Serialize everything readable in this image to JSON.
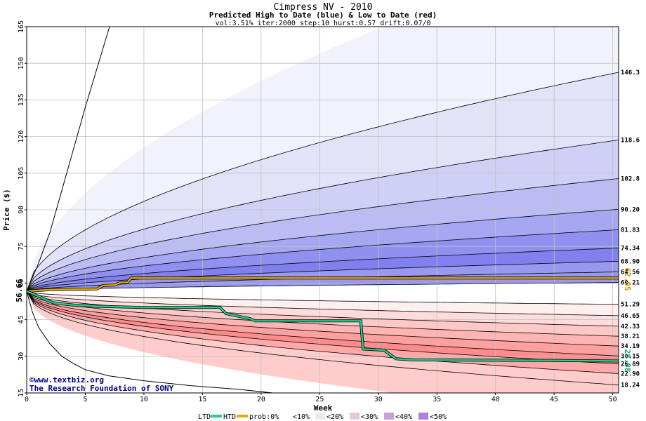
{
  "chart_data": {
    "type": "area",
    "title": "Cimpress NV - 2010",
    "subtitle": "Predicted High to Date (blue) &  Low to Date (red)",
    "params": "vol:3.51% iter:2000 step:10 hurst:0.57 drift:0.07/0",
    "xlabel": "Week",
    "ylabel": "Price ($)",
    "xlim": [
      0,
      50.5
    ],
    "ylim": [
      15,
      165
    ],
    "x_ticks": [
      0,
      5,
      10,
      15,
      20,
      25,
      30,
      35,
      40,
      45,
      50
    ],
    "y_ticks": [
      15,
      30,
      45,
      60,
      75,
      90,
      105,
      120,
      135,
      150,
      165
    ],
    "start_price": 56.66,
    "start_label": "56.66",
    "last_high_label": "62.05",
    "last_low_label": "28.08",
    "high_band_ends": [
      {
        "value": 146.3,
        "label": "146.3"
      },
      {
        "value": 118.6,
        "label": "118.6"
      },
      {
        "value": 102.8,
        "label": "102.8"
      },
      {
        "value": 90.2,
        "label": "90.20"
      },
      {
        "value": 81.83,
        "label": "81.83"
      },
      {
        "value": 74.34,
        "label": "74.34"
      },
      {
        "value": 68.9,
        "label": "68.90"
      },
      {
        "value": 64.56,
        "label": "64.56"
      },
      {
        "value": 60.21,
        "label": "60.21"
      }
    ],
    "low_band_ends": [
      {
        "value": 51.29,
        "label": "51.29"
      },
      {
        "value": 46.65,
        "label": "46.65"
      },
      {
        "value": 42.33,
        "label": "42.33"
      },
      {
        "value": 38.21,
        "label": "38.21"
      },
      {
        "value": 34.19,
        "label": "34.19"
      },
      {
        "value": 30.15,
        "label": "30.15"
      },
      {
        "value": 26.89,
        "label": "26.89"
      },
      {
        "value": 22.9,
        "label": "22.90"
      },
      {
        "value": 18.24,
        "label": "18.24"
      }
    ],
    "series": [
      {
        "name": "HTD",
        "color": "#e8a800",
        "points": [
          [
            0,
            56.66
          ],
          [
            2,
            57.3
          ],
          [
            5,
            57.5
          ],
          [
            6,
            57.6
          ],
          [
            6.5,
            59.0
          ],
          [
            7.5,
            59.2
          ],
          [
            8,
            60.2
          ],
          [
            8.6,
            60.3
          ],
          [
            8.9,
            62.05
          ],
          [
            20,
            62.05
          ],
          [
            50.5,
            62.05
          ]
        ]
      },
      {
        "name": "LTD",
        "color": "#20d090",
        "points": [
          [
            0,
            56.66
          ],
          [
            0.8,
            55.0
          ],
          [
            1.5,
            53.5
          ],
          [
            2.2,
            52.0
          ],
          [
            3,
            51.5
          ],
          [
            4,
            51.0
          ],
          [
            6,
            50.5
          ],
          [
            10,
            50.0
          ],
          [
            16.5,
            50.0
          ],
          [
            17,
            47.5
          ],
          [
            18,
            46.5
          ],
          [
            19,
            45.5
          ],
          [
            19.5,
            44.5
          ],
          [
            28.5,
            44.5
          ],
          [
            28.7,
            33.0
          ],
          [
            30.5,
            32.5
          ],
          [
            31.5,
            29.0
          ],
          [
            33,
            28.5
          ],
          [
            45,
            28.3
          ],
          [
            50.5,
            28.08
          ]
        ]
      }
    ],
    "upper_envelope": [
      [
        0,
        56.66
      ],
      [
        1,
        68
      ],
      [
        2,
        81
      ],
      [
        3,
        98
      ],
      [
        4,
        115
      ],
      [
        5,
        132
      ],
      [
        6,
        148
      ],
      [
        7,
        164
      ],
      [
        7.5,
        170
      ]
    ],
    "lower_envelope": [
      [
        0,
        56.66
      ],
      [
        0.5,
        48
      ],
      [
        1,
        42
      ],
      [
        2,
        35
      ],
      [
        3,
        30
      ],
      [
        4,
        27
      ],
      [
        5,
        24.5
      ],
      [
        7,
        22
      ],
      [
        10,
        20
      ],
      [
        14,
        18
      ],
      [
        18,
        16.5
      ],
      [
        21,
        15
      ]
    ],
    "legend": {
      "ltd": "LTD",
      "htd": "HTD",
      "prob": "prob:0%",
      "b10": "<10%",
      "b20": "<20%",
      "b30": "<30%",
      "b40": "<40%",
      "b50": "<50%"
    },
    "colors": {
      "blue_bands": [
        "#f2f2fc",
        "#e2e2f8",
        "#d0d0f6",
        "#bcbcf4",
        "#a6a6f2",
        "#9090f0",
        "#8080ee",
        "#9898f0"
      ],
      "red_bands": [
        "#fff0f0",
        "#ffdcdc",
        "#ffc8c8",
        "#ffb4b4",
        "#ffa0a0",
        "#ff8c8c",
        "#ffa8a8",
        "#ffcccc"
      ],
      "grid": "#c0c0c0",
      "start_label_color": "#000000",
      "high_label_color": "#c89000",
      "low_label_color": "#20a070"
    },
    "credits": [
      "©www.textbiz.org",
      "The Research Foundation of SONY"
    ]
  }
}
